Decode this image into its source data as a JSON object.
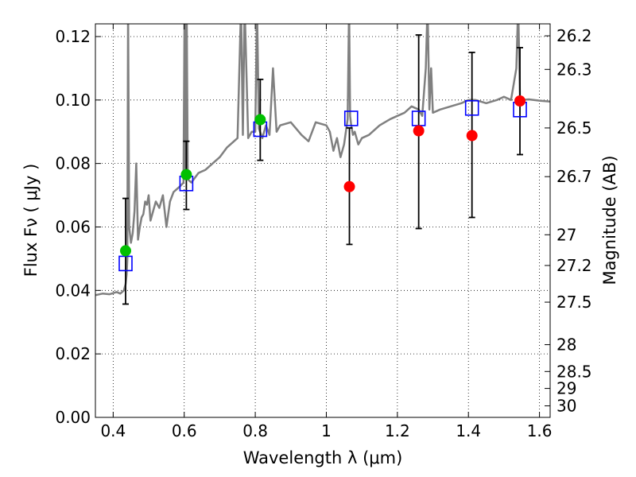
{
  "chart_data": {
    "type": "scatter",
    "xlabel": "Wavelength  λ (μm)",
    "ylabel": "Flux  Fν  ( μJy )",
    "y2label": "Magnitude (AB)",
    "xlim": [
      0.35,
      1.63
    ],
    "ylim": [
      0.0,
      0.124
    ],
    "grid": true,
    "xticks": [
      0.4,
      0.6,
      0.8,
      1.0,
      1.2,
      1.4,
      1.6
    ],
    "xtick_labels": [
      "0.4",
      "0.6",
      "0.8",
      "1",
      "1.2",
      "1.4",
      "1.6"
    ],
    "yticks": [
      0.0,
      0.02,
      0.04,
      0.06,
      0.08,
      0.1,
      0.12
    ],
    "ytick_labels": [
      "0.00",
      "0.02",
      "0.04",
      "0.06",
      "0.08",
      "0.10",
      "0.12"
    ],
    "mag_ticks": [
      26.2,
      26.3,
      26.5,
      26.7,
      27,
      27.2,
      27.5,
      28,
      28.5,
      29,
      30
    ],
    "mag_tick_labels": [
      "26.2",
      "26.3",
      "26.5",
      "26.7",
      "27",
      "27.2",
      "27.5",
      "28",
      "28.5",
      "29",
      "30"
    ],
    "observed_green": [
      {
        "x": 0.435,
        "y": 0.0525
      },
      {
        "x": 0.606,
        "y": 0.0765
      },
      {
        "x": 0.814,
        "y": 0.0938
      }
    ],
    "observed_red": [
      {
        "x": 1.065,
        "y": 0.0727
      },
      {
        "x": 1.26,
        "y": 0.0903
      },
      {
        "x": 1.41,
        "y": 0.0888
      },
      {
        "x": 1.545,
        "y": 0.0997
      }
    ],
    "error_bars": [
      {
        "x": 0.435,
        "low": 0.0357,
        "high": 0.069
      },
      {
        "x": 0.606,
        "low": 0.0655,
        "high": 0.087
      },
      {
        "x": 0.814,
        "low": 0.081,
        "high": 0.1065
      },
      {
        "x": 1.065,
        "low": 0.0545,
        "high": 0.0912
      },
      {
        "x": 1.26,
        "low": 0.0595,
        "high": 0.1205
      },
      {
        "x": 1.41,
        "low": 0.063,
        "high": 0.115
      },
      {
        "x": 1.545,
        "low": 0.0828,
        "high": 0.1165
      }
    ],
    "model_bandpass": [
      {
        "x": 0.435,
        "y": 0.0485
      },
      {
        "x": 0.606,
        "y": 0.0737
      },
      {
        "x": 0.814,
        "y": 0.0908
      },
      {
        "x": 1.07,
        "y": 0.0942
      },
      {
        "x": 1.26,
        "y": 0.0942
      },
      {
        "x": 1.41,
        "y": 0.0975
      },
      {
        "x": 1.545,
        "y": 0.097
      }
    ],
    "model_spectrum": {
      "x": [
        0.35,
        0.37,
        0.39,
        0.41,
        0.42,
        0.43,
        0.435,
        0.438,
        0.44,
        0.442,
        0.445,
        0.45,
        0.455,
        0.46,
        0.465,
        0.47,
        0.475,
        0.48,
        0.485,
        0.49,
        0.495,
        0.5,
        0.505,
        0.51,
        0.52,
        0.53,
        0.54,
        0.55,
        0.56,
        0.57,
        0.58,
        0.59,
        0.598,
        0.601,
        0.604,
        0.607,
        0.61,
        0.62,
        0.64,
        0.66,
        0.68,
        0.7,
        0.72,
        0.74,
        0.75,
        0.76,
        0.765,
        0.77,
        0.78,
        0.79,
        0.8,
        0.805,
        0.81,
        0.82,
        0.83,
        0.84,
        0.85,
        0.86,
        0.87,
        0.9,
        0.93,
        0.95,
        0.97,
        1.0,
        1.01,
        1.02,
        1.03,
        1.04,
        1.05,
        1.06,
        1.064,
        1.067,
        1.07,
        1.075,
        1.08,
        1.09,
        1.1,
        1.12,
        1.15,
        1.18,
        1.2,
        1.22,
        1.24,
        1.26,
        1.27,
        1.28,
        1.285,
        1.29,
        1.295,
        1.3,
        1.32,
        1.35,
        1.38,
        1.4,
        1.42,
        1.45,
        1.48,
        1.5,
        1.52,
        1.535,
        1.54,
        1.545,
        1.55,
        1.57,
        1.6,
        1.63
      ],
      "y": [
        0.0385,
        0.039,
        0.0388,
        0.0395,
        0.039,
        0.04,
        0.042,
        0.045,
        0.05,
        0.13,
        0.06,
        0.055,
        0.058,
        0.065,
        0.08,
        0.056,
        0.06,
        0.063,
        0.064,
        0.068,
        0.067,
        0.07,
        0.062,
        0.064,
        0.068,
        0.066,
        0.07,
        0.06,
        0.068,
        0.071,
        0.072,
        0.073,
        0.074,
        0.13,
        0.076,
        0.13,
        0.075,
        0.074,
        0.077,
        0.078,
        0.08,
        0.082,
        0.085,
        0.087,
        0.088,
        0.13,
        0.089,
        0.13,
        0.088,
        0.09,
        0.09,
        0.13,
        0.091,
        0.088,
        0.092,
        0.089,
        0.11,
        0.09,
        0.092,
        0.093,
        0.089,
        0.087,
        0.093,
        0.092,
        0.09,
        0.084,
        0.088,
        0.082,
        0.086,
        0.094,
        0.13,
        0.095,
        0.092,
        0.089,
        0.09,
        0.086,
        0.088,
        0.089,
        0.092,
        0.094,
        0.095,
        0.096,
        0.098,
        0.097,
        0.095,
        0.11,
        0.13,
        0.097,
        0.11,
        0.096,
        0.097,
        0.098,
        0.099,
        0.1,
        0.1,
        0.099,
        0.1,
        0.101,
        0.1,
        0.11,
        0.13,
        0.101,
        0.1,
        0.1002,
        0.0998,
        0.0995
      ]
    },
    "colors": {
      "model_line": "#808080",
      "green_points": "#00c000",
      "red_points": "#ff0000",
      "box_markers": "#0000ff",
      "error_bars": "#000000"
    }
  }
}
